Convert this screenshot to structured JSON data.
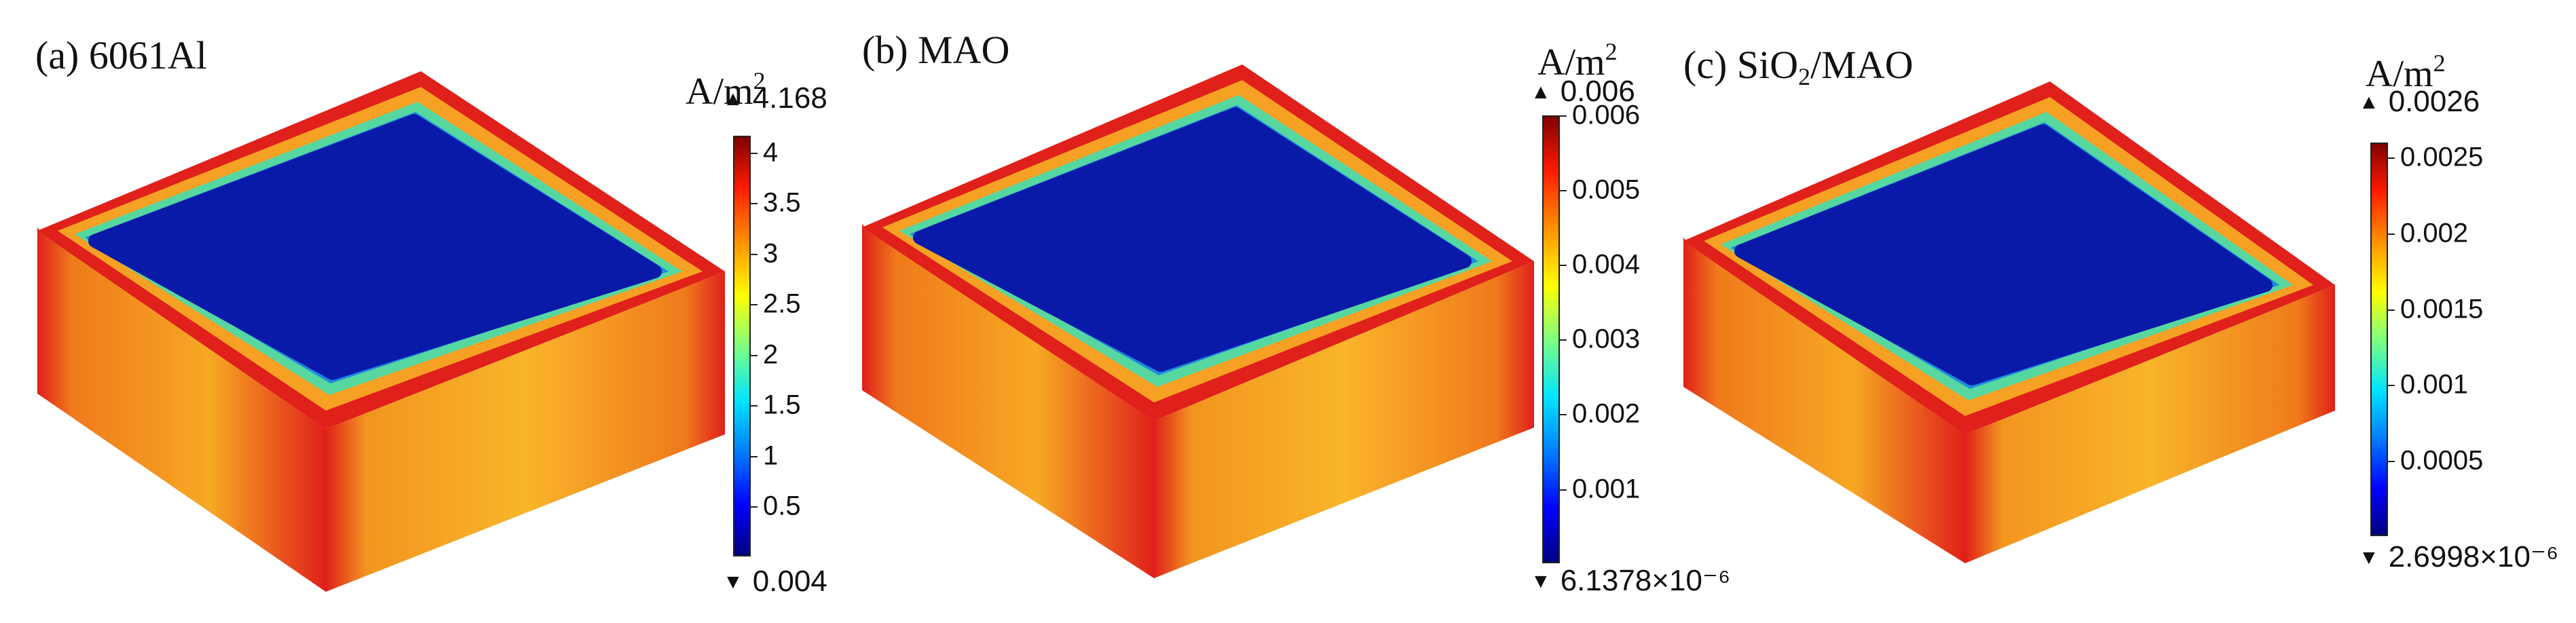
{
  "colors": {
    "blue_face": "#0a1aa8",
    "edge_red": "#e0201a",
    "side_orange": "#f4a020"
  },
  "panels": [
    {
      "title_prefix": "(a) 6061Al",
      "title_sub": "",
      "title_suffix": "",
      "unit": "A/m",
      "unit_sup": "2",
      "max": "4.168",
      "min": "0.004",
      "ticks": [
        "4",
        "3.5",
        "3",
        "2.5",
        "2",
        "1.5",
        "1",
        "0.5"
      ],
      "tick_values": [
        4,
        3.5,
        3,
        2.5,
        2,
        1.5,
        1,
        0.5
      ],
      "range": [
        0.004,
        4.168
      ]
    },
    {
      "title_prefix": "(b) MAO",
      "title_sub": "",
      "title_suffix": "",
      "unit": "A/m",
      "unit_sup": "2",
      "max": "0.006",
      "min": "6.1378×10⁻⁶",
      "ticks": [
        "0.006",
        "0.005",
        "0.004",
        "0.003",
        "0.002",
        "0.001"
      ],
      "tick_values": [
        0.006,
        0.005,
        0.004,
        0.003,
        0.002,
        0.001
      ],
      "range": [
        6.1378e-06,
        0.006
      ]
    },
    {
      "title_prefix": "(c) SiO",
      "title_sub": "2",
      "title_suffix": "/MAO",
      "unit": "A/m",
      "unit_sup": "2",
      "max": "0.0026",
      "min": "2.6998×10⁻⁶",
      "ticks": [
        "0.0025",
        "0.002",
        "0.0015",
        "0.001",
        "0.0005"
      ],
      "tick_values": [
        0.0025,
        0.002,
        0.0015,
        0.001,
        0.0005
      ],
      "range": [
        2.6998e-06,
        0.0026
      ]
    }
  ]
}
